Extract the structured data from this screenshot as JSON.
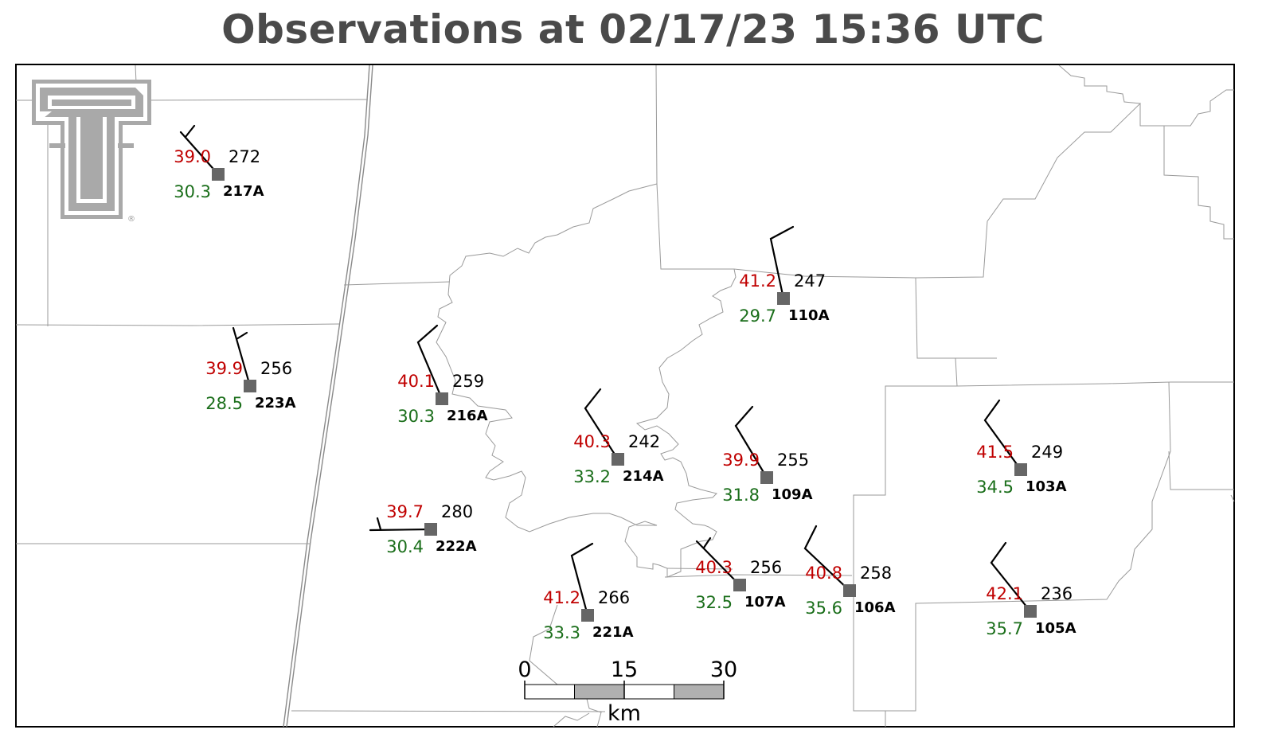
{
  "title": "Observations at 02/17/23 15:36 UTC",
  "colors": {
    "temperature": "#c00000",
    "dewpoint": "#1a6e1a",
    "station_marker": "#666666",
    "title": "#4a4a4a"
  },
  "logo": {
    "name": "texas-tech-double-t-logo",
    "registered_mark": "®"
  },
  "stations": [
    {
      "id": "217A",
      "temp": "39.0",
      "dew": "30.3",
      "dir": "272"
    },
    {
      "id": "223A",
      "temp": "39.9",
      "dew": "28.5",
      "dir": "256"
    },
    {
      "id": "216A",
      "temp": "40.1",
      "dew": "30.3",
      "dir": "259"
    },
    {
      "id": "222A",
      "temp": "39.7",
      "dew": "30.4",
      "dir": "280"
    },
    {
      "id": "214A",
      "temp": "40.3",
      "dew": "33.2",
      "dir": "242"
    },
    {
      "id": "221A",
      "temp": "41.2",
      "dew": "33.3",
      "dir": "266"
    },
    {
      "id": "110A",
      "temp": "41.2",
      "dew": "29.7",
      "dir": "247"
    },
    {
      "id": "109A",
      "temp": "39.9",
      "dew": "31.8",
      "dir": "255"
    },
    {
      "id": "107A",
      "temp": "40.3",
      "dew": "32.5",
      "dir": "256"
    },
    {
      "id": "106A",
      "temp": "40.8",
      "dew": "35.6",
      "dir": "258"
    },
    {
      "id": "103A",
      "temp": "41.5",
      "dew": "34.5",
      "dir": "249"
    },
    {
      "id": "105A",
      "temp": "42.1",
      "dew": "35.7",
      "dir": "236"
    }
  ],
  "scale_bar": {
    "ticks": [
      "0",
      "15",
      "30"
    ],
    "unit": "km"
  }
}
